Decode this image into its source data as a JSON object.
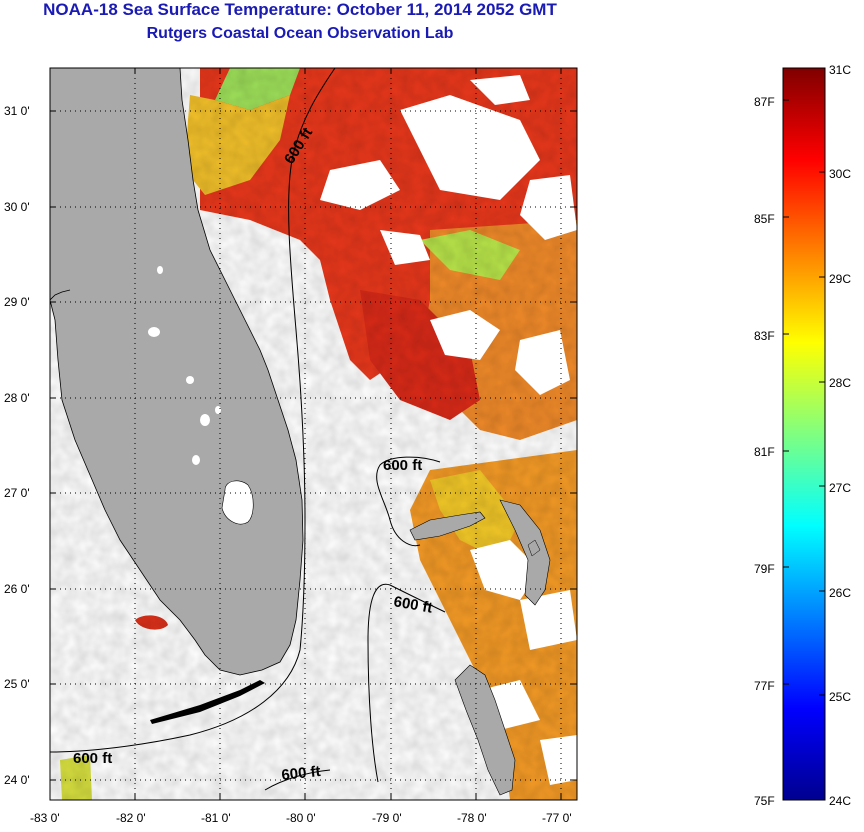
{
  "header": {
    "title": "NOAA-18 Sea Surface Temperature:  October 11, 2014 2052 GMT",
    "subtitle": "Rutgers Coastal Ocean Observation Lab"
  },
  "map": {
    "lat_labels": [
      "31 0'",
      "30 0'",
      "29 0'",
      "28 0'",
      "27 0'",
      "26 0'",
      "25 0'",
      "24 0'"
    ],
    "lon_labels": [
      "-83 0'",
      "-82 0'",
      "-81 0'",
      "-80 0'",
      "-79 0'",
      "-78 0'",
      "-77 0'"
    ],
    "lat_range": [
      23.8,
      31.45
    ],
    "lon_range": [
      -83,
      -76.8
    ],
    "grid": true,
    "land_color": "#a9a9a9",
    "cloud_color": "#ffffff",
    "contour_labels": [
      "600 ft",
      "600 ft",
      "600 ft",
      "600 ft",
      "600 ft"
    ]
  },
  "colorbar": {
    "celsius_labels": [
      "31C",
      "30C",
      "29C",
      "28C",
      "27C",
      "26C",
      "25C",
      "24C"
    ],
    "fahrenheit_labels": [
      "87F",
      "85F",
      "83F",
      "81F",
      "79F",
      "77F",
      "75F"
    ],
    "range_c": [
      24,
      31
    ],
    "colormap": "jet"
  }
}
